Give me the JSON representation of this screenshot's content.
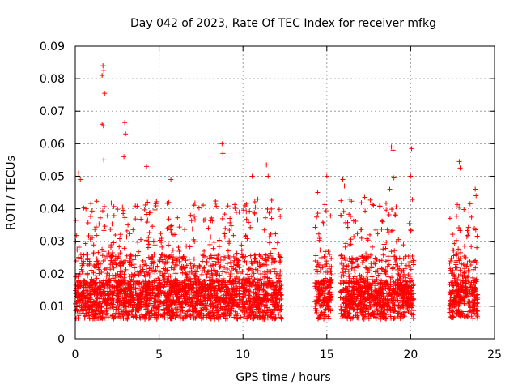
{
  "chart_data": {
    "type": "scatter",
    "title": "Day 042 of 2023, Rate Of TEC Index for receiver mfkg",
    "xlabel": "GPS time / hours",
    "ylabel": "ROTI / TECUs",
    "xlim": [
      0,
      25
    ],
    "ylim": [
      0,
      0.09
    ],
    "xticks": [
      "0",
      "5",
      "10",
      "15",
      "20",
      "25"
    ],
    "yticks": [
      "0",
      "0.01",
      "0.02",
      "0.03",
      "0.04",
      "0.05",
      "0.06",
      "0.07",
      "0.08",
      "0.09"
    ],
    "grid": true,
    "legend": "none",
    "marker": "+",
    "color": "#ff0000",
    "observation_segments": [
      [
        0.0,
        12.3
      ],
      [
        14.3,
        15.3
      ],
      [
        15.8,
        20.2
      ],
      [
        22.3,
        24.0
      ]
    ],
    "series": [
      {
        "values": [
          [
            1.65,
            0.084
          ],
          [
            1.7,
            0.0825
          ],
          [
            1.6,
            0.081
          ],
          [
            1.75,
            0.0755
          ],
          [
            1.6,
            0.066
          ],
          [
            1.68,
            0.0655
          ],
          [
            2.95,
            0.0665
          ],
          [
            3.0,
            0.063
          ],
          [
            8.75,
            0.06
          ],
          [
            18.85,
            0.059
          ],
          [
            18.95,
            0.058
          ],
          [
            20.05,
            0.0585
          ],
          [
            1.7,
            0.055
          ],
          [
            2.9,
            0.056
          ],
          [
            4.25,
            0.053
          ],
          [
            8.8,
            0.057
          ],
          [
            11.4,
            0.0535
          ],
          [
            11.5,
            0.05
          ],
          [
            15.0,
            0.05
          ],
          [
            15.95,
            0.049
          ],
          [
            19.0,
            0.0495
          ],
          [
            20.0,
            0.05
          ],
          [
            22.9,
            0.0545
          ],
          [
            22.95,
            0.0525
          ],
          [
            0.2,
            0.051
          ],
          [
            0.3,
            0.049
          ],
          [
            5.7,
            0.049
          ],
          [
            10.55,
            0.05
          ],
          [
            14.45,
            0.045
          ],
          [
            16.05,
            0.047
          ],
          [
            17.25,
            0.0435
          ],
          [
            18.75,
            0.046
          ],
          [
            23.85,
            0.046
          ],
          [
            23.9,
            0.044
          ]
        ]
      }
    ]
  }
}
